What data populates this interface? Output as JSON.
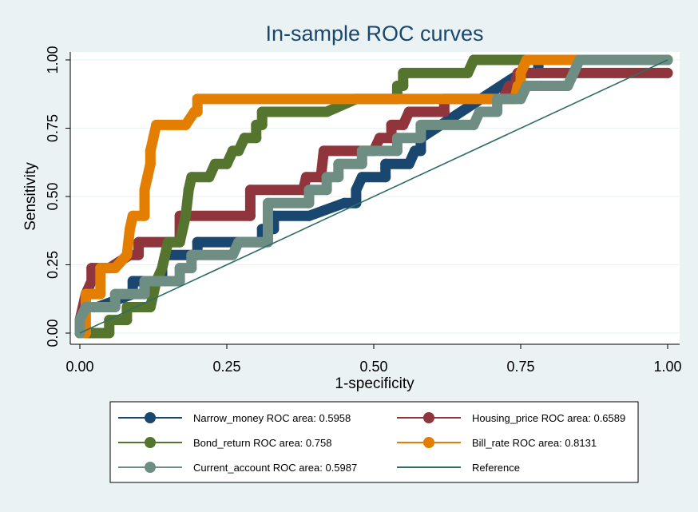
{
  "chart_data": {
    "type": "line",
    "title": "In-sample ROC curves",
    "xlabel": "1-specificity",
    "ylabel": "Sensitivity",
    "xlim": [
      0,
      1
    ],
    "ylim": [
      0,
      1
    ],
    "xticks": [
      0,
      0.25,
      0.5,
      0.75,
      1
    ],
    "yticks": [
      0,
      0.25,
      0.5,
      0.75,
      1
    ],
    "xtick_labels": [
      "0.00",
      "0.25",
      "0.50",
      "0.75",
      "1.00"
    ],
    "ytick_labels": [
      "0.00",
      "0.25",
      "0.50",
      "0.75",
      "1.00"
    ],
    "grid": true,
    "legend_position": "bottom",
    "series": [
      {
        "name": "Narrow_money ROC area: 0.5958",
        "color": "#1a476f",
        "points": [
          [
            0,
            0
          ],
          [
            0,
            0.048
          ],
          [
            0.006,
            0.095
          ],
          [
            0.03,
            0.095
          ],
          [
            0.09,
            0.143
          ],
          [
            0.09,
            0.19
          ],
          [
            0.14,
            0.19
          ],
          [
            0.14,
            0.238
          ],
          [
            0.145,
            0.286
          ],
          [
            0.2,
            0.286
          ],
          [
            0.2,
            0.333
          ],
          [
            0.31,
            0.333
          ],
          [
            0.31,
            0.381
          ],
          [
            0.33,
            0.381
          ],
          [
            0.33,
            0.429
          ],
          [
            0.39,
            0.429
          ],
          [
            0.45,
            0.476
          ],
          [
            0.47,
            0.476
          ],
          [
            0.47,
            0.524
          ],
          [
            0.48,
            0.571
          ],
          [
            0.52,
            0.571
          ],
          [
            0.52,
            0.619
          ],
          [
            0.56,
            0.619
          ],
          [
            0.57,
            0.667
          ],
          [
            0.58,
            0.667
          ],
          [
            0.58,
            0.714
          ],
          [
            0.75,
            0.952
          ],
          [
            0.78,
            0.952
          ],
          [
            0.78,
            1
          ],
          [
            1,
            1
          ]
        ]
      },
      {
        "name": "Housing_price ROC area: 0.6589",
        "color": "#90353b",
        "points": [
          [
            0,
            0
          ],
          [
            0,
            0.048
          ],
          [
            0.005,
            0.095
          ],
          [
            0.01,
            0.143
          ],
          [
            0.02,
            0.19
          ],
          [
            0.02,
            0.238
          ],
          [
            0.05,
            0.238
          ],
          [
            0.085,
            0.286
          ],
          [
            0.1,
            0.286
          ],
          [
            0.1,
            0.333
          ],
          [
            0.17,
            0.333
          ],
          [
            0.17,
            0.429
          ],
          [
            0.29,
            0.429
          ],
          [
            0.29,
            0.524
          ],
          [
            0.38,
            0.524
          ],
          [
            0.385,
            0.571
          ],
          [
            0.41,
            0.571
          ],
          [
            0.415,
            0.667
          ],
          [
            0.5,
            0.667
          ],
          [
            0.51,
            0.714
          ],
          [
            0.53,
            0.714
          ],
          [
            0.53,
            0.762
          ],
          [
            0.55,
            0.762
          ],
          [
            0.56,
            0.81
          ],
          [
            0.62,
            0.81
          ],
          [
            0.62,
            0.857
          ],
          [
            0.72,
            0.857
          ],
          [
            0.73,
            0.905
          ],
          [
            0.74,
            0.905
          ],
          [
            0.745,
            0.952
          ],
          [
            1,
            0.952
          ]
        ]
      },
      {
        "name": "Bond_return ROC area: 0.758",
        "color": "#55752f",
        "points": [
          [
            0,
            0
          ],
          [
            0.05,
            0
          ],
          [
            0.05,
            0.048
          ],
          [
            0.08,
            0.048
          ],
          [
            0.08,
            0.095
          ],
          [
            0.12,
            0.095
          ],
          [
            0.13,
            0.19
          ],
          [
            0.14,
            0.238
          ],
          [
            0.15,
            0.333
          ],
          [
            0.17,
            0.333
          ],
          [
            0.18,
            0.429
          ],
          [
            0.185,
            0.524
          ],
          [
            0.19,
            0.571
          ],
          [
            0.22,
            0.571
          ],
          [
            0.23,
            0.619
          ],
          [
            0.25,
            0.619
          ],
          [
            0.26,
            0.667
          ],
          [
            0.27,
            0.667
          ],
          [
            0.28,
            0.714
          ],
          [
            0.3,
            0.714
          ],
          [
            0.3,
            0.762
          ],
          [
            0.31,
            0.762
          ],
          [
            0.31,
            0.81
          ],
          [
            0.42,
            0.81
          ],
          [
            0.47,
            0.857
          ],
          [
            0.54,
            0.857
          ],
          [
            0.54,
            0.905
          ],
          [
            0.55,
            0.905
          ],
          [
            0.55,
            0.952
          ],
          [
            0.66,
            0.952
          ],
          [
            0.67,
            1
          ],
          [
            1,
            1
          ]
        ]
      },
      {
        "name": "Bill_rate ROC area: 0.8131",
        "color": "#e37e00",
        "points": [
          [
            0,
            0
          ],
          [
            0.01,
            0
          ],
          [
            0.01,
            0.143
          ],
          [
            0.035,
            0.143
          ],
          [
            0.035,
            0.238
          ],
          [
            0.06,
            0.238
          ],
          [
            0.08,
            0.286
          ],
          [
            0.085,
            0.381
          ],
          [
            0.09,
            0.429
          ],
          [
            0.11,
            0.429
          ],
          [
            0.11,
            0.524
          ],
          [
            0.115,
            0.571
          ],
          [
            0.12,
            0.619
          ],
          [
            0.12,
            0.667
          ],
          [
            0.125,
            0.714
          ],
          [
            0.13,
            0.762
          ],
          [
            0.18,
            0.762
          ],
          [
            0.195,
            0.81
          ],
          [
            0.2,
            0.81
          ],
          [
            0.2,
            0.857
          ],
          [
            0.74,
            0.857
          ],
          [
            0.745,
            0.905
          ],
          [
            0.75,
            0.905
          ],
          [
            0.75,
            0.952
          ],
          [
            0.76,
            1
          ],
          [
            1,
            1
          ]
        ]
      },
      {
        "name": "Current_account ROC area: 0.5987",
        "color": "#6e8e84",
        "points": [
          [
            0,
            0
          ],
          [
            0,
            0.048
          ],
          [
            0.01,
            0.095
          ],
          [
            0.06,
            0.095
          ],
          [
            0.06,
            0.143
          ],
          [
            0.11,
            0.143
          ],
          [
            0.11,
            0.19
          ],
          [
            0.17,
            0.19
          ],
          [
            0.17,
            0.238
          ],
          [
            0.19,
            0.238
          ],
          [
            0.19,
            0.286
          ],
          [
            0.26,
            0.286
          ],
          [
            0.27,
            0.333
          ],
          [
            0.32,
            0.333
          ],
          [
            0.32,
            0.381
          ],
          [
            0.32,
            0.429
          ],
          [
            0.32,
            0.476
          ],
          [
            0.39,
            0.476
          ],
          [
            0.39,
            0.524
          ],
          [
            0.42,
            0.524
          ],
          [
            0.42,
            0.571
          ],
          [
            0.44,
            0.571
          ],
          [
            0.44,
            0.619
          ],
          [
            0.48,
            0.619
          ],
          [
            0.48,
            0.667
          ],
          [
            0.54,
            0.667
          ],
          [
            0.54,
            0.714
          ],
          [
            0.58,
            0.714
          ],
          [
            0.58,
            0.762
          ],
          [
            0.67,
            0.762
          ],
          [
            0.68,
            0.81
          ],
          [
            0.71,
            0.81
          ],
          [
            0.71,
            0.857
          ],
          [
            0.75,
            0.857
          ],
          [
            0.76,
            0.905
          ],
          [
            0.83,
            0.905
          ],
          [
            0.84,
            0.952
          ],
          [
            0.85,
            1
          ],
          [
            1,
            1
          ]
        ]
      },
      {
        "name": "Reference",
        "color": "#2d6d66",
        "points": [
          [
            0,
            0
          ],
          [
            1,
            1
          ]
        ],
        "markers": false
      }
    ]
  }
}
